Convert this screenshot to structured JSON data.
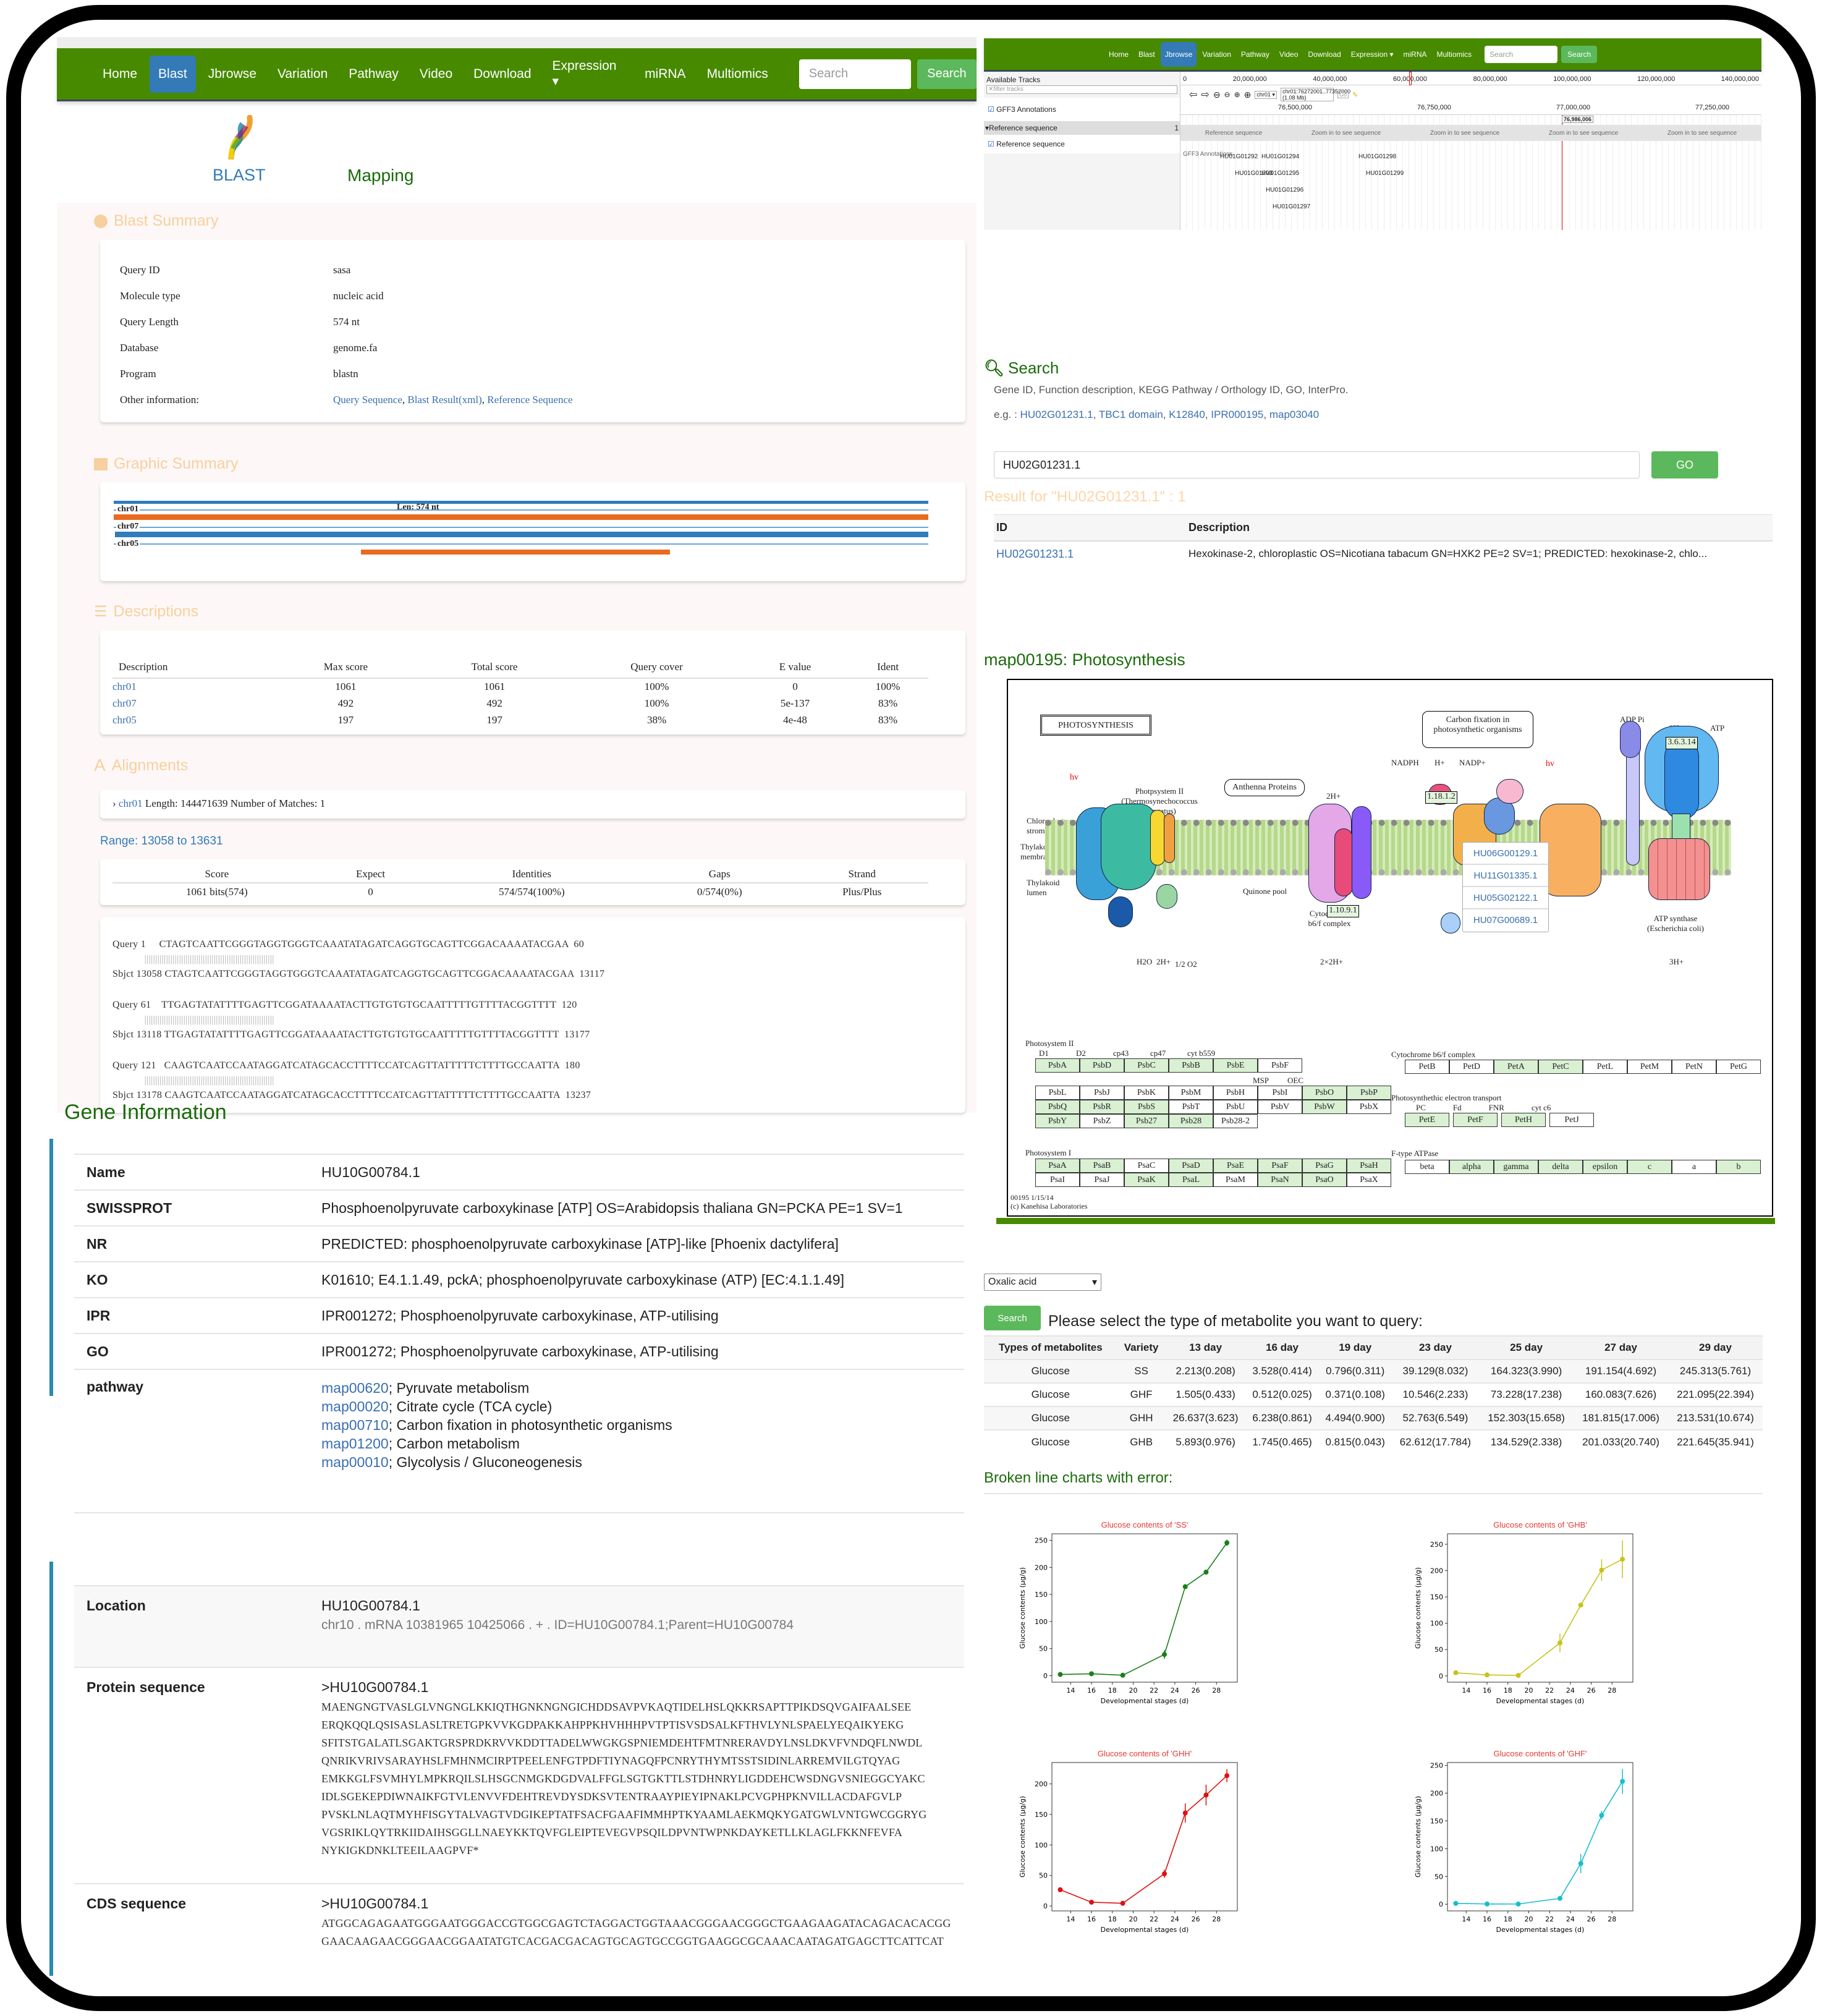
{
  "blast_panel": {
    "nav": {
      "items": [
        "Home",
        "Blast",
        "Jbrowse",
        "Variation",
        "Pathway",
        "Video",
        "Download",
        "Expression ▾",
        "miRNA",
        "Multiomics"
      ],
      "active": "Blast",
      "search_placeholder": "Search",
      "search_button": "Search"
    },
    "tabs": {
      "blast": "BLAST",
      "mapping": "Mapping"
    },
    "summary": {
      "title": "Blast Summary",
      "rows": [
        {
          "k": "Query ID",
          "v": "sasa"
        },
        {
          "k": "Molecule type",
          "v": "nucleic acid"
        },
        {
          "k": "Query Length",
          "v": "574 nt"
        },
        {
          "k": "Database",
          "v": "genome.fa"
        },
        {
          "k": "Program",
          "v": "blastn"
        }
      ],
      "other_label": "Other information:",
      "other_links": [
        "Query Sequence",
        "Blast Result(xml)",
        "Reference Sequence"
      ]
    },
    "graphic": {
      "title": "Graphic Summary",
      "len_label": "Len: 574 nt",
      "tracks": [
        "chr01",
        "chr07",
        "chr05"
      ]
    },
    "descriptions": {
      "title": "Descriptions",
      "headers": [
        "Description",
        "Max score",
        "Total score",
        "Query cover",
        "E value",
        "Ident"
      ],
      "rows": [
        [
          "chr01",
          "1061",
          "1061",
          "100%",
          "0",
          "100%"
        ],
        [
          "chr07",
          "492",
          "492",
          "100%",
          "5e-137",
          "83%"
        ],
        [
          "chr05",
          "197",
          "197",
          "38%",
          "4e-48",
          "83%"
        ]
      ]
    },
    "alignments": {
      "title": "Alignments",
      "hit_link": "chr01",
      "hit_info": "Length: 144471639 Number of Matches: 1",
      "range": "Range: 13058 to 13631",
      "headers": [
        "Score",
        "Expect",
        "Identities",
        "Gaps",
        "Strand"
      ],
      "values": [
        "1061 bits(574)",
        "0",
        "574/574(100%)",
        "0/574(0%)",
        "Plus/Plus"
      ],
      "blocks": [
        {
          "q": "Query 1     CTAGTCAATTCGGGTAGGTGGGTCAAATATAGATCAGGTGCAGTTCGGACAAAATACGAA  60",
          "m": "            ||||||||||||||||||||||||||||||||||||||||||||||||||||||||||||",
          "s": "Sbjct 13058 CTAGTCAATTCGGGTAGGTGGGTCAAATATAGATCAGGTGCAGTTCGGACAAAATACGAA  13117"
        },
        {
          "q": "Query 61    TTGAGTATATTTTGAGTTCGGATAAAATACTTGTGTGTGCAATTTTTGTTTTACGGTTTT  120",
          "m": "            ||||||||||||||||||||||||||||||||||||||||||||||||||||||||||||",
          "s": "Sbjct 13118 TTGAGTATATTTTGAGTTCGGATAAAATACTTGTGTGTGCAATTTTTGTTTTACGGTTTT  13177"
        },
        {
          "q": "Query 121   CAAGTCAATCCAATAGGATCATAGCACCTTTTCCATCAGTTATTTTTCTTTTGCCAATTA  180",
          "m": "            ||||||||||||||||||||||||||||||||||||||||||||||||||||||||||||",
          "s": "Sbjct 13178 CAAGTCAATCCAATAGGATCATAGCACCTTTTCCATCAGTTATTTTTCTTTTGCCAATTA  13237"
        }
      ]
    }
  },
  "jbrowse": {
    "nav": {
      "items": [
        "Home",
        "Blast",
        "Jbrowse",
        "Variation",
        "Pathway",
        "Video",
        "Download",
        "Expression ▾",
        "miRNA",
        "Multiomics"
      ],
      "active": "Jbrowse",
      "search_placeholder": "Search",
      "search_button": "Search"
    },
    "available_tracks": "Available Tracks",
    "filter_placeholder": "filter tracks",
    "track_gff": "GFF3 Annotations",
    "ref_group": "Reference sequence",
    "ref_group_count": "1",
    "track_ref": "Reference sequence",
    "overview_ticks": [
      "0",
      "20,000,000",
      "40,000,000",
      "60,000,000",
      "80,000,000",
      "100,000,000",
      "120,000,000",
      "140,000,000"
    ],
    "chrom": "chr01",
    "location": "chr01:76272001..77352000 (1.08 Mb)",
    "go": "Go",
    "detail_ticks": [
      "76,500,000",
      "76,750,000",
      "77,000,000",
      "77,250,000"
    ],
    "cursor_pos": "76,986,006",
    "zoom_hint": "Zoom in to see sequence",
    "genes": [
      "HU01G01292",
      "HU01G01293",
      "HU01G01294",
      "HU01G01295",
      "HU01G01296",
      "HU01G01297",
      "HU01G01298",
      "HU01G01299"
    ]
  },
  "search": {
    "title": "Search",
    "hint": "Gene ID, Function description, KEGG Pathway / Orthology ID, GO, InterPro.",
    "eg_label": "e.g. :",
    "examples": [
      "HU02G01231.1",
      "TBC1 domain",
      "K12840",
      "IPR000195",
      "map03040"
    ],
    "input_value": "HU02G01231.1",
    "go": "GO",
    "result_title": "Result for \"HU02G01231.1\" : 1",
    "headers": [
      "ID",
      "Description"
    ],
    "rows": [
      [
        "HU02G01231.1",
        "Hexokinase-2, chloroplastic OS=Nicotiana tabacum GN=HXK2 PE=2 SV=1; PREDICTED: hexokinase-2, chlo..."
      ]
    ]
  },
  "pathway": {
    "title": "map00195: Photosynthesis",
    "map_title": "PHOTOSYNTHESIS",
    "popup_genes": [
      "HU06G00129.1",
      "HU11G01335.1",
      "HU05G02122.1",
      "HU07G00689.1"
    ],
    "labels": {
      "carbon": "Carbon fixation in photosynthetic organisms",
      "antenna": "Anthenna Proteins",
      "ps2": "Photpsystem II (Thermosynechococcus slongatus)",
      "stroma": "Chloroplast stroma",
      "membrane": "Thylakoid membrane",
      "lumen": "Thylakoid lumen",
      "quinone": "Quinone pool",
      "cytb6f": "Cytochrome b6/f complex",
      "atp": "ATP synthase (Escherichia coli)",
      "hv": "hv",
      "ec1": "1.18.1.2",
      "ec2": "1.10.9.1",
      "ec3": "3.6.3.14",
      "nadph": "NADPH",
      "hplus": "H+",
      "nadp": "NADP+",
      "adp": "ADP Pi",
      "h3": "3H+",
      "atp_o": "ATP",
      "h2o": "H2O",
      "h2": "2H+",
      "o2": "1/2 O2",
      "h22": "2×2H+",
      "h2top": "2H+"
    },
    "ps2_groups": {
      "title": "Photosystem II",
      "heads": [
        "D1",
        "D2",
        "cp43",
        "cp47",
        "cyt b559",
        ""
      ],
      "row1": [
        [
          "PsbA",
          1
        ],
        [
          "PsbD",
          1
        ],
        [
          "PsbC",
          1
        ],
        [
          "PsbB",
          1
        ],
        [
          "PsbE",
          1
        ],
        [
          "PsbF",
          0
        ]
      ],
      "heads2": [
        "MSP",
        "OEC"
      ],
      "row2": [
        [
          "PsbL",
          0
        ],
        [
          "PsbJ",
          0
        ],
        [
          "PsbK",
          0
        ],
        [
          "PsbM",
          0
        ],
        [
          "PsbH",
          0
        ],
        [
          "PsbI",
          0
        ],
        [
          "PsbO",
          1
        ],
        [
          "PsbP",
          1
        ]
      ],
      "row3": [
        [
          "PsbQ",
          1
        ],
        [
          "PsbR",
          1
        ],
        [
          "PsbS",
          1
        ],
        [
          "PsbT",
          0
        ],
        [
          "PsbU",
          0
        ],
        [
          "PsbV",
          0
        ],
        [
          "PsbW",
          1
        ],
        [
          "PsbX",
          0
        ]
      ],
      "row4": [
        [
          "PsbY",
          1
        ],
        [
          "PsbZ",
          0
        ],
        [
          "Psb27",
          1
        ],
        [
          "Psb28",
          1
        ],
        [
          "Psb28-2",
          0
        ]
      ]
    },
    "ps1_groups": {
      "title": "Photosystem I",
      "row1": [
        [
          "PsaA",
          1
        ],
        [
          "PsaB",
          1
        ],
        [
          "PsaC",
          0
        ],
        [
          "PsaD",
          1
        ],
        [
          "PsaE",
          1
        ],
        [
          "PsaF",
          1
        ],
        [
          "PsaG",
          1
        ],
        [
          "PsaH",
          1
        ]
      ],
      "row2": [
        [
          "PsaI",
          0
        ],
        [
          "PsaJ",
          0
        ],
        [
          "PsaK",
          1
        ],
        [
          "PsaL",
          1
        ],
        [
          "PsaM",
          0
        ],
        [
          "PsaN",
          1
        ],
        [
          "PsaO",
          1
        ],
        [
          "PsaX",
          0
        ]
      ]
    },
    "cyt_groups": {
      "title": "Cytochrome b6/f complex",
      "row": [
        [
          "PetB",
          0
        ],
        [
          "PetD",
          0
        ],
        [
          "PetA",
          1
        ],
        [
          "PetC",
          1
        ],
        [
          "PetL",
          0
        ],
        [
          "PetM",
          0
        ],
        [
          "PetN",
          0
        ],
        [
          "PetG",
          0
        ]
      ]
    },
    "pet_groups": {
      "title": "Photosynthethic electron transport",
      "heads": [
        "PC",
        "Fd",
        "FNR",
        "cyt c6"
      ],
      "row": [
        [
          "PetE",
          1
        ],
        [
          "PetF",
          1
        ],
        [
          "PetH",
          1
        ],
        [
          "PetJ",
          0
        ]
      ]
    },
    "atpase_groups": {
      "title": "F-type ATPase",
      "row": [
        [
          "beta",
          0
        ],
        [
          "alpha",
          1
        ],
        [
          "gamma",
          1
        ],
        [
          "delta",
          1
        ],
        [
          "epsilon",
          1
        ],
        [
          "c",
          1
        ],
        [
          "a",
          0
        ],
        [
          "b",
          1
        ]
      ]
    },
    "footer1": "00195 1/15/14",
    "footer2": "(c) Kanehisa Laboratories"
  },
  "gene_info": {
    "title": "Gene Information",
    "rows": [
      {
        "k": "Name",
        "v": "HU10G00784.1"
      },
      {
        "k": "SWISSPROT",
        "v": "Phosphoenolpyruvate carboxykinase [ATP] OS=Arabidopsis thaliana GN=PCKA PE=1 SV=1"
      },
      {
        "k": "NR",
        "v": "PREDICTED: phosphoenolpyruvate carboxykinase [ATP]-like [Phoenix dactylifera]"
      },
      {
        "k": "KO",
        "v": "K01610; E4.1.1.49, pckA; phosphoenolpyruvate carboxykinase (ATP) [EC:4.1.1.49]"
      },
      {
        "k": "IPR",
        "v": "IPR001272; Phosphoenolpyruvate carboxykinase, ATP-utilising"
      },
      {
        "k": "GO",
        "v": "IPR001272; Phosphoenolpyruvate carboxykinase, ATP-utilising"
      }
    ],
    "pathway_label": "pathway",
    "pathways": [
      {
        "id": "map00620",
        "name": "; Pyruvate metabolism"
      },
      {
        "id": "map00020",
        "name": "; Citrate cycle (TCA cycle)"
      },
      {
        "id": "map00710",
        "name": "; Carbon fixation in photosynthetic organisms"
      },
      {
        "id": "map01200",
        "name": "; Carbon metabolism"
      },
      {
        "id": "map00010",
        "name": "; Glycolysis / Gluconeogenesis"
      }
    ],
    "location_label": "Location",
    "location_id": "HU10G00784.1",
    "location_detail": "chr10 . mRNA 10381965 10425066 . + . ID=HU10G00784.1;Parent=HU10G00784",
    "protein_label": "Protein sequence",
    "protein_header": ">HU10G00784.1",
    "protein_lines": [
      "MAENGNGTVASLGLVNGNGLKKIQTHGNKNGNGICHDDSAVPVKAQTIDELHSLQKKRSAPTTPIKDSQVGAIFAALSEE",
      "ERQKQQLQSISASLASLTRETGPKVVKGDPAKKAHPPKHVHHHPVTPTISVSDSALKFTHVLYNLSPAELYEQAIKYEKG",
      "SFITSTGALATLSGAKTGRSPRDKRVVKDDTTADELWWGKGSPNIEMDEHTFMTNRERAVDYLNSLDKVFVNDQFLNWDL",
      "QNRIKVRIVSARAYHSLFMHNMCIRPTPEELENFGTPDFTIYNAGQFPCNRYTHYMTSSTSIDINLARREMVILGTQYAG",
      "EMKKGLFSVMHYLMPKRQILSLHSGCNMGKDGDVALFFGLSGTGKTTLSTDHNRYLIGDDEHCWSDNGVSNIEGGCYAKC",
      "IDLSGEKEPDIWNAIKFGTVLENVVFDEHTREVDYSDKSVTENTRAAYPIEYIPNAKLPCVGPHPKNVILLACDAFGVLP",
      "PVSKLNLAQTMYHFISGYTALVAGTVDGIKEPTATFSACFGAAFIMMHPTKYAAMLAEKMQKYGATGWLVNTGWCGGRYG",
      "VGSRIKLQYTRKIIDAIHSGGLLNAEYKKTQVFGLEIPTEVEGVPSQILDPVNTWPNKDAYKETLLKLAGLFKKNFEVFA",
      "NYKIGKDNKLTEEILAAGPVF*"
    ],
    "cds_label": "CDS sequence",
    "cds_header": ">HU10G00784.1",
    "cds_lines": [
      "ATGGCAGAGAATGGGAATGGGACCGTGGCGAGTCTAGGACTGGTAAACGGGAACGGGCTGAAGAAGATACAGACACACGG",
      "GAACAAGAACGGGAACGGAATATGTCACGACGACAGTGCAGTGCCGGTGAAGGCGCAAACAATAGATGAGCTTCATTCAT"
    ]
  },
  "metabolite": {
    "select_value": "Oxalic acid",
    "search_button": "Search",
    "prompt": "Please select the type of metabolite you want to query:",
    "headers": [
      "Types of metabolites",
      "Variety",
      "13 day",
      "16 day",
      "19 day",
      "23 day",
      "25 day",
      "27 day",
      "29 day"
    ],
    "rows": [
      [
        "Glucose",
        "SS",
        "2.213(0.208)",
        "3.528(0.414)",
        "0.796(0.311)",
        "39.129(8.032)",
        "164.323(3.990)",
        "191.154(4.692)",
        "245.313(5.761)"
      ],
      [
        "Glucose",
        "GHF",
        "1.505(0.433)",
        "0.512(0.025)",
        "0.371(0.108)",
        "10.546(2.233)",
        "73.228(17.238)",
        "160.083(7.626)",
        "221.095(22.394)"
      ],
      [
        "Glucose",
        "GHH",
        "26.637(3.623)",
        "6.238(0.861)",
        "4.494(0.900)",
        "52.763(6.549)",
        "152.303(15.658)",
        "181.815(17.006)",
        "213.531(10.674)"
      ],
      [
        "Glucose",
        "GHB",
        "5.893(0.976)",
        "1.745(0.465)",
        "0.815(0.043)",
        "62.612(17.784)",
        "134.529(2.338)",
        "201.033(20.740)",
        "221.645(35.941)"
      ]
    ],
    "charts_title": "Broken line charts with error:"
  },
  "chart_data": [
    {
      "type": "line",
      "title": "Glucose contents of 'SS'",
      "xlabel": "Developmental stages (d)",
      "ylabel": "Glucose contents (μg/g)",
      "x": [
        13,
        16,
        19,
        23,
        25,
        27,
        29
      ],
      "values": [
        2.213,
        3.528,
        0.796,
        39.129,
        164.323,
        191.154,
        245.313
      ],
      "errors": [
        0.208,
        0.414,
        0.311,
        8.032,
        3.99,
        4.692,
        5.761
      ],
      "color": "#1a7f1a",
      "xticks": [
        14,
        16,
        18,
        20,
        22,
        24,
        26,
        28
      ],
      "yticks": [
        0,
        50,
        100,
        150,
        200,
        250
      ],
      "ylim": [
        -12,
        262
      ]
    },
    {
      "type": "line",
      "title": "Glucose contents of 'GHB'",
      "xlabel": "Developmental stages (d)",
      "ylabel": "Glucose contents (μg/g)",
      "x": [
        13,
        16,
        19,
        23,
        25,
        27,
        29
      ],
      "values": [
        5.893,
        1.745,
        0.815,
        62.612,
        134.529,
        201.033,
        221.645
      ],
      "errors": [
        0.976,
        0.465,
        0.043,
        17.784,
        2.338,
        20.74,
        35.941
      ],
      "color": "#c8c21a",
      "xticks": [
        14,
        16,
        18,
        20,
        22,
        24,
        26,
        28
      ],
      "yticks": [
        0,
        50,
        100,
        150,
        200,
        250
      ],
      "ylim": [
        -12,
        270
      ]
    },
    {
      "type": "line",
      "title": "Glucose contents of 'GHH'",
      "xlabel": "Developmental stages (d)",
      "ylabel": "Glucose contents (μg/g)",
      "x": [
        13,
        16,
        19,
        23,
        25,
        27,
        29
      ],
      "values": [
        26.637,
        6.238,
        4.494,
        52.763,
        152.303,
        181.815,
        213.531
      ],
      "errors": [
        3.623,
        0.861,
        0.9,
        6.549,
        15.658,
        17.006,
        10.674
      ],
      "color": "#e01010",
      "xticks": [
        14,
        16,
        18,
        20,
        22,
        24,
        26,
        28
      ],
      "yticks": [
        0,
        50,
        100,
        150,
        200
      ],
      "ylim": [
        -8,
        235
      ]
    },
    {
      "type": "line",
      "title": "Glucose contents of 'GHF'",
      "xlabel": "Developmental stages (d)",
      "ylabel": "Glucose contents (μg/g)",
      "x": [
        13,
        16,
        19,
        23,
        25,
        27,
        29
      ],
      "values": [
        1.505,
        0.512,
        0.371,
        10.546,
        73.228,
        160.083,
        221.095
      ],
      "errors": [
        0.433,
        0.025,
        0.108,
        2.233,
        17.238,
        7.626,
        22.394
      ],
      "color": "#17becf",
      "xticks": [
        14,
        16,
        18,
        20,
        22,
        24,
        26,
        28
      ],
      "yticks": [
        0,
        50,
        100,
        150,
        200,
        250
      ],
      "ylim": [
        -12,
        255
      ]
    }
  ]
}
